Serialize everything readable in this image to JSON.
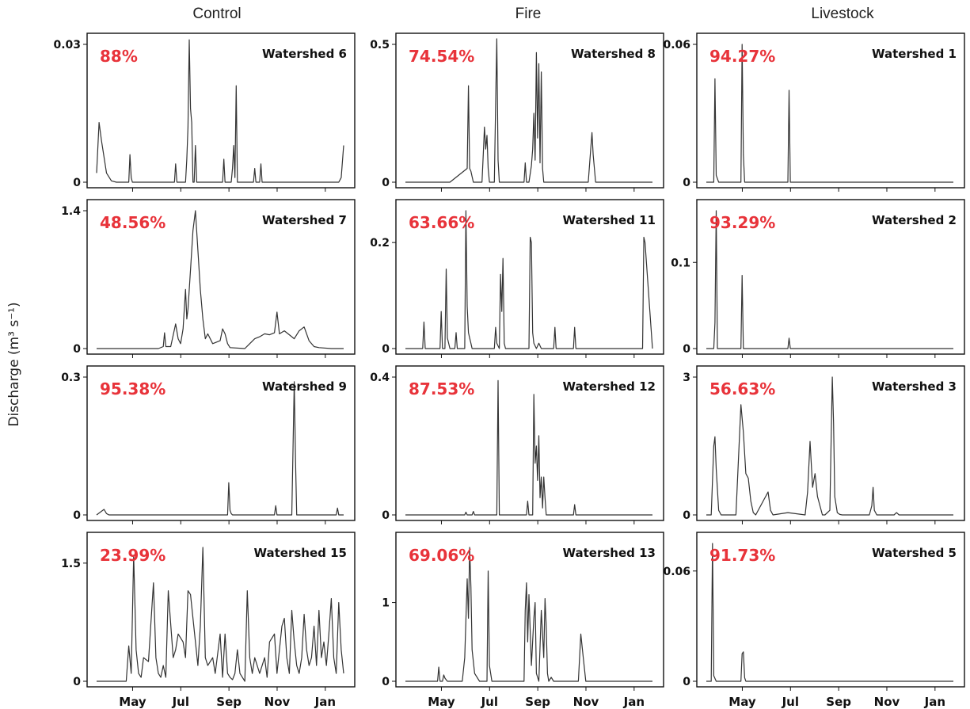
{
  "columns": [
    "Control",
    "Fire",
    "Livestock"
  ],
  "ylabel": "Discharge (m³ s⁻¹)",
  "x_ticks": [
    "May",
    "Jul",
    "Sep",
    "Nov",
    "Jan"
  ],
  "colors": {
    "line": "#333333",
    "percent": "#e8333a",
    "axis": "#111111"
  },
  "chart_data": [
    {
      "type": "line",
      "watershed": "Watershed 6",
      "treatment": "Control",
      "percent": "88%",
      "ylim": [
        0,
        0.03
      ],
      "y_ticks": [
        "0",
        "0.03"
      ],
      "y_tick_values": [
        0,
        0.03
      ],
      "x": [
        0,
        0.01,
        0.02,
        0.04,
        0.06,
        0.08,
        0.09,
        0.13,
        0.135,
        0.14,
        0.145,
        0.155,
        0.315,
        0.32,
        0.325,
        0.36,
        0.365,
        0.37,
        0.375,
        0.38,
        0.385,
        0.39,
        0.395,
        0.4,
        0.405,
        0.41,
        0.415,
        0.42,
        0.425,
        0.51,
        0.515,
        0.52,
        0.545,
        0.55,
        0.555,
        0.56,
        0.565,
        0.57,
        0.575,
        0.58,
        0.635,
        0.64,
        0.645,
        0.66,
        0.665,
        0.67,
        0.98,
        0.99,
        1.0
      ],
      "y": [
        0.002,
        0.013,
        0.009,
        0.002,
        0.0003,
        0,
        0,
        0,
        0.006,
        0.001,
        0,
        0,
        0,
        0.004,
        0,
        0,
        0.005,
        0.012,
        0.031,
        0.016,
        0.013,
        0,
        0,
        0.008,
        0,
        0,
        0,
        0,
        0,
        0,
        0.005,
        0,
        0,
        0.003,
        0.008,
        0.001,
        0.021,
        0,
        0,
        0,
        0,
        0.003,
        0,
        0,
        0.004,
        0,
        0,
        0.001,
        0.008
      ]
    },
    {
      "type": "line",
      "watershed": "Watershed 8",
      "treatment": "Fire",
      "percent": "74.54%",
      "ylim": [
        0,
        0.5
      ],
      "y_ticks": [
        "0",
        "0.5"
      ],
      "y_tick_values": [
        0,
        0.5
      ],
      "x": [
        0,
        0.1,
        0.18,
        0.25,
        0.255,
        0.26,
        0.265,
        0.27,
        0.275,
        0.31,
        0.315,
        0.32,
        0.325,
        0.33,
        0.335,
        0.34,
        0.36,
        0.365,
        0.37,
        0.375,
        0.38,
        0.48,
        0.485,
        0.49,
        0.5,
        0.51,
        0.515,
        0.52,
        0.525,
        0.53,
        0.535,
        0.54,
        0.545,
        0.55,
        0.555,
        0.56,
        0.57,
        0.74,
        0.75,
        0.755,
        0.76,
        0.77,
        1.0
      ],
      "y": [
        0,
        0,
        0,
        0.05,
        0.35,
        0.05,
        0.04,
        0.02,
        0,
        0,
        0.1,
        0.2,
        0.12,
        0.17,
        0.05,
        0,
        0,
        0.28,
        0.52,
        0.08,
        0,
        0,
        0.07,
        0,
        0,
        0.06,
        0.12,
        0.25,
        0.08,
        0.47,
        0.16,
        0.43,
        0.07,
        0.4,
        0.05,
        0,
        0,
        0,
        0.12,
        0.18,
        0.1,
        0,
        0
      ]
    },
    {
      "type": "line",
      "watershed": "Watershed 1",
      "treatment": "Livestock",
      "percent": "94.27%",
      "ylim": [
        0,
        0.06
      ],
      "y_ticks": [
        "0",
        "0.06"
      ],
      "y_tick_values": [
        0,
        0.06
      ],
      "x": [
        0,
        0.03,
        0.035,
        0.04,
        0.05,
        0.14,
        0.145,
        0.15,
        0.155,
        0.16,
        0.33,
        0.335,
        0.34,
        0.35,
        1.0
      ],
      "y": [
        0,
        0,
        0.045,
        0.003,
        0,
        0,
        0.06,
        0.012,
        0,
        0,
        0,
        0.04,
        0,
        0,
        0
      ]
    },
    {
      "type": "line",
      "watershed": "Watershed 7",
      "treatment": "Control",
      "percent": "48.56%",
      "ylim": [
        0,
        1.4
      ],
      "y_ticks": [
        "0",
        "1.4"
      ],
      "y_tick_values": [
        0,
        1.4
      ],
      "x": [
        0,
        0.25,
        0.27,
        0.275,
        0.28,
        0.3,
        0.32,
        0.33,
        0.34,
        0.35,
        0.36,
        0.365,
        0.37,
        0.38,
        0.39,
        0.4,
        0.41,
        0.42,
        0.43,
        0.44,
        0.45,
        0.47,
        0.5,
        0.51,
        0.52,
        0.53,
        0.54,
        0.6,
        0.62,
        0.64,
        0.66,
        0.68,
        0.7,
        0.72,
        0.73,
        0.74,
        0.76,
        0.78,
        0.8,
        0.82,
        0.84,
        0.86,
        0.88,
        0.9,
        0.95,
        1.0
      ],
      "y": [
        0,
        0,
        0.02,
        0.16,
        0.02,
        0.02,
        0.25,
        0.1,
        0.05,
        0.2,
        0.6,
        0.3,
        0.4,
        0.8,
        1.2,
        1.4,
        1.0,
        0.6,
        0.3,
        0.1,
        0.15,
        0.05,
        0.08,
        0.2,
        0.15,
        0.05,
        0.01,
        0,
        0.05,
        0.1,
        0.12,
        0.15,
        0.14,
        0.16,
        0.37,
        0.15,
        0.18,
        0.14,
        0.1,
        0.18,
        0.22,
        0.08,
        0.02,
        0.01,
        0,
        0
      ]
    },
    {
      "type": "line",
      "watershed": "Watershed 11",
      "treatment": "Fire",
      "percent": "63.66%",
      "ylim": [
        0,
        0.26
      ],
      "y_ticks": [
        "0",
        "0.2"
      ],
      "y_tick_values": [
        0,
        0.2
      ],
      "x": [
        0,
        0.07,
        0.075,
        0.08,
        0.14,
        0.145,
        0.15,
        0.16,
        0.165,
        0.17,
        0.18,
        0.2,
        0.205,
        0.21,
        0.24,
        0.245,
        0.25,
        0.255,
        0.26,
        0.265,
        0.27,
        0.29,
        0.36,
        0.365,
        0.37,
        0.38,
        0.385,
        0.39,
        0.395,
        0.4,
        0.405,
        0.41,
        0.42,
        0.5,
        0.505,
        0.51,
        0.515,
        0.52,
        0.53,
        0.54,
        0.55,
        0.56,
        0.6,
        0.605,
        0.61,
        0.68,
        0.685,
        0.69,
        0.95,
        0.96,
        0.965,
        0.97,
        1.0
      ],
      "y": [
        0,
        0,
        0.05,
        0,
        0,
        0.07,
        0,
        0,
        0.15,
        0.02,
        0,
        0,
        0.03,
        0,
        0,
        0.26,
        0.08,
        0.03,
        0.02,
        0.01,
        0,
        0,
        0,
        0.04,
        0.01,
        0,
        0.14,
        0.07,
        0.17,
        0.01,
        0,
        0,
        0,
        0,
        0.21,
        0.2,
        0.03,
        0.01,
        0,
        0.01,
        0,
        0,
        0,
        0.04,
        0,
        0,
        0.04,
        0,
        0,
        0,
        0.21,
        0.2,
        0
      ]
    },
    {
      "type": "line",
      "watershed": "Watershed 2",
      "treatment": "Livestock",
      "percent": "93.29%",
      "ylim": [
        0,
        0.16
      ],
      "y_ticks": [
        "0",
        "0.1"
      ],
      "y_tick_values": [
        0,
        0.1
      ],
      "x": [
        0,
        0.03,
        0.035,
        0.04,
        0.045,
        0.05,
        0.14,
        0.145,
        0.15,
        0.33,
        0.335,
        0.34,
        1.0
      ],
      "y": [
        0,
        0,
        0.03,
        0.16,
        0,
        0,
        0,
        0.085,
        0,
        0,
        0.012,
        0,
        0
      ]
    },
    {
      "type": "line",
      "watershed": "Watershed 9",
      "treatment": "Control",
      "percent": "95.38%",
      "ylim": [
        0,
        0.3
      ],
      "y_ticks": [
        "0",
        "0.3"
      ],
      "y_tick_values": [
        0,
        0.3
      ],
      "x": [
        0,
        0.02,
        0.03,
        0.04,
        0.05,
        0.53,
        0.535,
        0.54,
        0.545,
        0.55,
        0.72,
        0.725,
        0.73,
        0.79,
        0.795,
        0.8,
        0.805,
        0.81,
        0.97,
        0.975,
        0.98,
        1.0
      ],
      "y": [
        0,
        0.008,
        0.012,
        0.003,
        0,
        0,
        0.07,
        0.01,
        0.003,
        0,
        0,
        0.02,
        0,
        0,
        0.14,
        0.29,
        0.12,
        0,
        0,
        0.015,
        0,
        0
      ]
    },
    {
      "type": "line",
      "watershed": "Watershed 12",
      "treatment": "Fire",
      "percent": "87.53%",
      "ylim": [
        0,
        0.4
      ],
      "y_ticks": [
        "0",
        "0.4"
      ],
      "y_tick_values": [
        0,
        0.4
      ],
      "x": [
        0,
        0.24,
        0.245,
        0.25,
        0.27,
        0.275,
        0.28,
        0.37,
        0.375,
        0.38,
        0.49,
        0.495,
        0.5,
        0.515,
        0.52,
        0.525,
        0.53,
        0.535,
        0.54,
        0.545,
        0.55,
        0.555,
        0.56,
        0.565,
        0.57,
        0.68,
        0.685,
        0.69,
        1.0
      ],
      "y": [
        0,
        0,
        0.008,
        0,
        0,
        0.01,
        0,
        0,
        0.39,
        0,
        0,
        0.04,
        0,
        0,
        0.35,
        0.15,
        0.2,
        0.1,
        0.23,
        0.05,
        0.11,
        0.02,
        0.11,
        0.05,
        0,
        0,
        0.03,
        0,
        0
      ]
    },
    {
      "type": "line",
      "watershed": "Watershed 3",
      "treatment": "Livestock",
      "percent": "56.63%",
      "ylim": [
        0,
        3
      ],
      "y_ticks": [
        "0",
        "3"
      ],
      "y_tick_values": [
        0,
        3
      ],
      "x": [
        0,
        0.02,
        0.03,
        0.035,
        0.04,
        0.05,
        0.06,
        0.12,
        0.14,
        0.15,
        0.16,
        0.17,
        0.18,
        0.19,
        0.2,
        0.25,
        0.26,
        0.27,
        0.33,
        0.4,
        0.41,
        0.42,
        0.43,
        0.44,
        0.45,
        0.46,
        0.47,
        0.48,
        0.5,
        0.51,
        0.515,
        0.52,
        0.53,
        0.54,
        0.55,
        0.56,
        0.6,
        0.66,
        0.67,
        0.675,
        0.68,
        0.69,
        0.72,
        0.76,
        0.77,
        0.78,
        1.0
      ],
      "y": [
        0,
        0,
        1.5,
        1.7,
        1.0,
        0.1,
        0,
        0,
        2.4,
        1.8,
        0.9,
        0.8,
        0.3,
        0.05,
        0,
        0.5,
        0.1,
        0,
        0.05,
        0,
        0.5,
        1.6,
        0.6,
        0.9,
        0.4,
        0.2,
        0,
        0,
        0.1,
        3.0,
        2.0,
        0.4,
        0.05,
        0.01,
        0,
        0,
        0,
        0,
        0.2,
        0.6,
        0.1,
        0,
        0,
        0,
        0.05,
        0,
        0
      ]
    },
    {
      "type": "line",
      "watershed": "Watershed 15",
      "treatment": "Control",
      "percent": "23.99%",
      "ylim": [
        0,
        1.75
      ],
      "y_ticks": [
        "0",
        "1.5"
      ],
      "y_tick_values": [
        0,
        1.5
      ],
      "x": [
        0,
        0.12,
        0.13,
        0.14,
        0.15,
        0.16,
        0.17,
        0.18,
        0.19,
        0.21,
        0.23,
        0.24,
        0.25,
        0.26,
        0.27,
        0.28,
        0.29,
        0.31,
        0.32,
        0.33,
        0.35,
        0.36,
        0.37,
        0.38,
        0.41,
        0.42,
        0.43,
        0.44,
        0.45,
        0.47,
        0.48,
        0.5,
        0.51,
        0.52,
        0.53,
        0.54,
        0.55,
        0.56,
        0.57,
        0.58,
        0.6,
        0.61,
        0.62,
        0.63,
        0.64,
        0.66,
        0.68,
        0.69,
        0.7,
        0.72,
        0.73,
        0.74,
        0.75,
        0.76,
        0.77,
        0.78,
        0.79,
        0.8,
        0.81,
        0.82,
        0.83,
        0.84,
        0.85,
        0.86,
        0.87,
        0.88,
        0.89,
        0.9,
        0.91,
        0.92,
        0.93,
        0.94,
        0.95,
        0.96,
        0.97,
        0.98,
        0.99,
        1.0
      ],
      "y": [
        0,
        0,
        0.45,
        0.1,
        1.6,
        0.4,
        0.1,
        0.05,
        0.3,
        0.25,
        1.25,
        0.3,
        0.1,
        0.05,
        0.2,
        0.05,
        1.15,
        0.3,
        0.4,
        0.6,
        0.5,
        0.3,
        1.15,
        1.1,
        0.2,
        0.7,
        1.7,
        0.3,
        0.2,
        0.3,
        0.1,
        0.6,
        0.05,
        0.6,
        0.1,
        0.05,
        0.02,
        0.1,
        0.4,
        0.1,
        0,
        1.15,
        0.3,
        0.1,
        0.3,
        0.1,
        0.3,
        0.05,
        0.5,
        0.6,
        0.1,
        0.4,
        0.7,
        0.8,
        0.3,
        0.1,
        0.9,
        0.5,
        0.2,
        0.1,
        0.3,
        0.85,
        0.4,
        0.2,
        0.3,
        0.7,
        0.2,
        0.9,
        0.3,
        0.5,
        0.2,
        0.6,
        1.05,
        0.3,
        0.1,
        1.0,
        0.4,
        0.1
      ]
    },
    {
      "type": "line",
      "watershed": "Watershed 13",
      "treatment": "Fire",
      "percent": "69.06%",
      "ylim": [
        0,
        1.75
      ],
      "y_ticks": [
        "0",
        "1"
      ],
      "y_tick_values": [
        0,
        1
      ],
      "x": [
        0,
        0.13,
        0.135,
        0.14,
        0.15,
        0.155,
        0.16,
        0.17,
        0.23,
        0.24,
        0.25,
        0.255,
        0.26,
        0.265,
        0.27,
        0.28,
        0.3,
        0.33,
        0.335,
        0.34,
        0.35,
        0.48,
        0.485,
        0.49,
        0.495,
        0.5,
        0.51,
        0.52,
        0.525,
        0.53,
        0.54,
        0.55,
        0.56,
        0.565,
        0.57,
        0.575,
        0.58,
        0.59,
        0.6,
        0.7,
        0.71,
        0.72,
        0.73,
        1.0
      ],
      "y": [
        0,
        0,
        0.18,
        0,
        0,
        0.08,
        0.04,
        0,
        0,
        0.3,
        1.3,
        0.8,
        1.7,
        1.2,
        0.4,
        0.1,
        0,
        0,
        1.4,
        0.2,
        0,
        0,
        0.9,
        1.25,
        0.5,
        1.1,
        0.2,
        0.8,
        1.0,
        0.1,
        0,
        0.9,
        0.3,
        1.05,
        0.7,
        0.1,
        0,
        0.05,
        0,
        0,
        0.6,
        0.3,
        0,
        0
      ]
    },
    {
      "type": "line",
      "watershed": "Watershed 5",
      "treatment": "Livestock",
      "percent": "91.73%",
      "ylim": [
        0,
        0.075
      ],
      "y_ticks": [
        "0",
        "0.06"
      ],
      "y_tick_values": [
        0,
        0.06
      ],
      "x": [
        0,
        0.02,
        0.025,
        0.03,
        0.04,
        0.14,
        0.145,
        0.15,
        0.155,
        0.16,
        0.34,
        1.0
      ],
      "y": [
        0,
        0,
        0.075,
        0.003,
        0,
        0,
        0.015,
        0.016,
        0.002,
        0,
        0,
        0
      ]
    }
  ]
}
